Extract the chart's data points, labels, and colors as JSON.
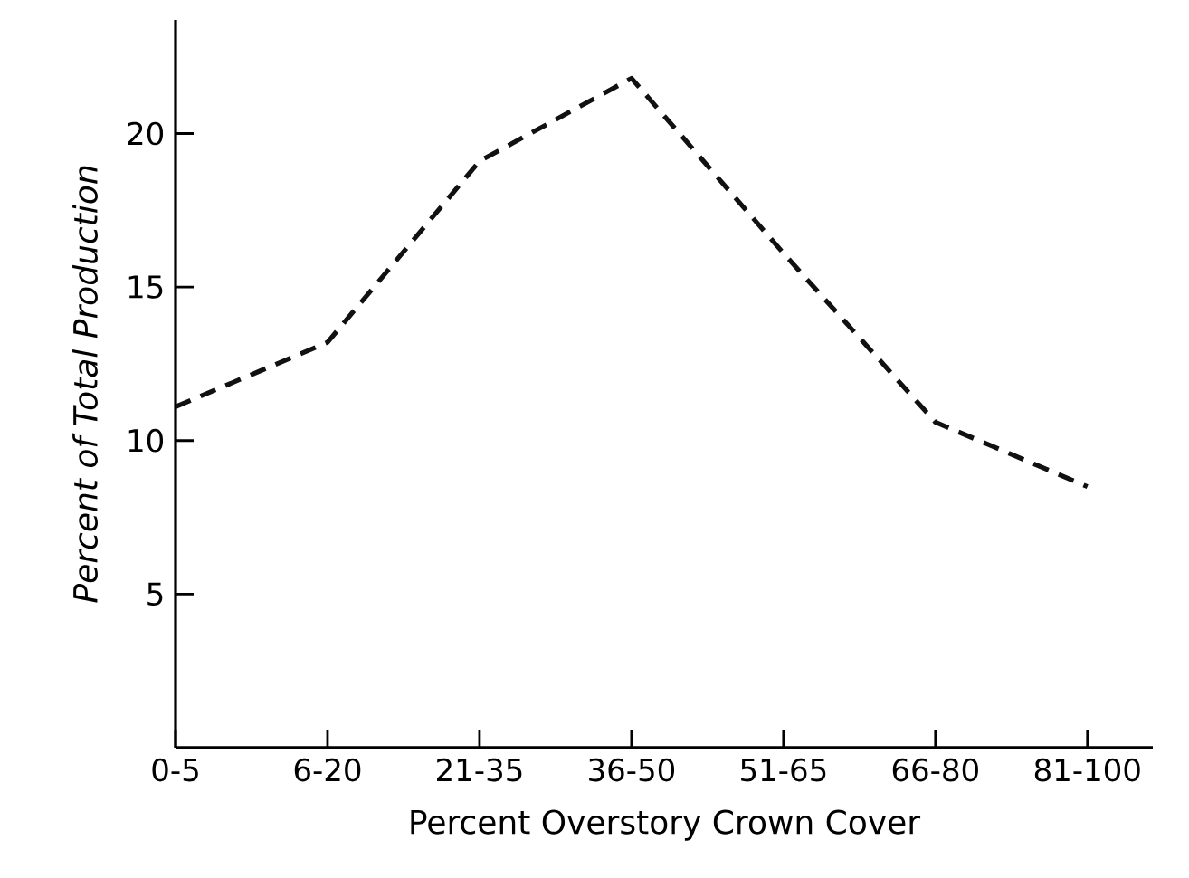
{
  "chart_data": {
    "type": "line",
    "xlabel": "Percent  Overstory  Crown  Cover",
    "ylabel": "Percent  of  Total  Production",
    "categories": [
      "0-5",
      "6-20",
      "21-35",
      "36-50",
      "51-65",
      "66-80",
      "81-100"
    ],
    "values": [
      11.1,
      13.2,
      19.1,
      21.8,
      16.1,
      10.6,
      8.5
    ],
    "color": "#111111",
    "line_style": "dashed",
    "marker": "none",
    "ylim": [
      0,
      23.7
    ],
    "yticks": [
      5,
      10,
      15,
      20
    ]
  }
}
